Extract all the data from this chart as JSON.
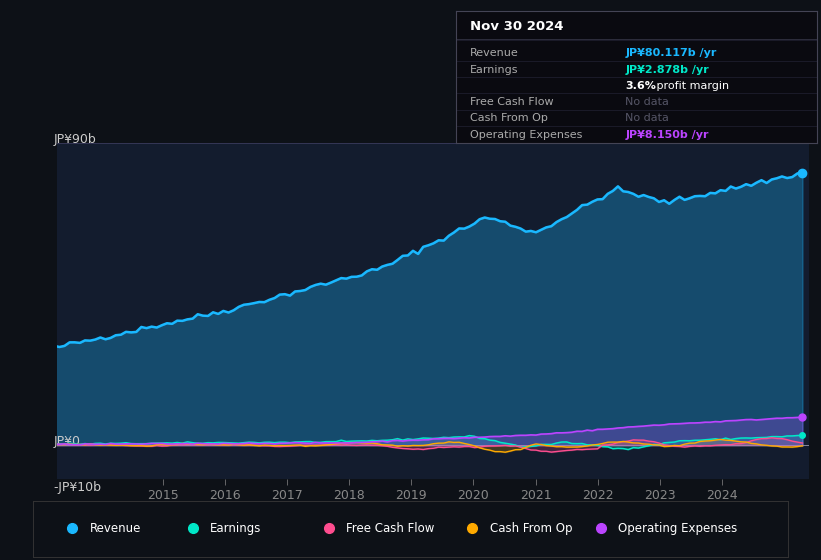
{
  "bg_color": "#0d1117",
  "chart_bg": "#131c2e",
  "ylabel_top": "JP¥90b",
  "ylabel_mid": "JP¥0",
  "ylabel_bot": "-JP¥10b",
  "x_ticks": [
    "2015",
    "2016",
    "2017",
    "2018",
    "2019",
    "2020",
    "2021",
    "2022",
    "2023",
    "2024"
  ],
  "legend": [
    {
      "label": "Revenue",
      "color": "#1ab8ff"
    },
    {
      "label": "Earnings",
      "color": "#00e8c8"
    },
    {
      "label": "Free Cash Flow",
      "color": "#ff4d8f"
    },
    {
      "label": "Cash From Op",
      "color": "#ffaa00"
    },
    {
      "label": "Operating Expenses",
      "color": "#bb44ff"
    }
  ],
  "tooltip": {
    "date": "Nov 30 2024",
    "revenue": "JP¥80.117b /yr",
    "revenue_color": "#1ab8ff",
    "earnings": "JP¥2.878b /yr",
    "earnings_color": "#00e8c8",
    "profit_margin_bold": "3.6%",
    "profit_margin_normal": " profit margin",
    "free_cash_flow": "No data",
    "cash_from_op": "No data",
    "operating_expenses": "JP¥8.150b /yr",
    "operating_expenses_color": "#bb44ff"
  }
}
